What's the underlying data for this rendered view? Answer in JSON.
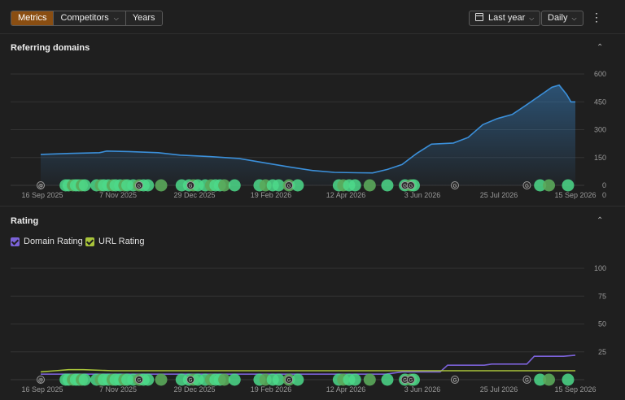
{
  "toolbar": {
    "tabs": [
      {
        "label": "Metrics",
        "active": true
      },
      {
        "label": "Competitors",
        "active": false,
        "dropdown": true
      },
      {
        "label": "Years",
        "active": false
      }
    ],
    "period_label": "Last year",
    "granularity_label": "Daily",
    "more_icon": "kebab-icon",
    "accent_color": "#8a4e12"
  },
  "sections": {
    "referring_domains": {
      "title": "Referring domains"
    },
    "rating": {
      "title": "Rating"
    }
  },
  "rating_legend": [
    {
      "label": "Domain Rating",
      "color": "#7b62d8",
      "checked": true
    },
    {
      "label": "URL Rating",
      "color": "#a8c43a",
      "checked": true
    }
  ],
  "chart_data": [
    {
      "type": "area",
      "title": "Referring domains",
      "x_tick_labels": [
        "16 Sep 2025",
        "7 Nov 2025",
        "29 Dec 2025",
        "19 Feb 2026",
        "12 Apr 2026",
        "3 Jun 2026",
        "25 Jul 2026",
        "15 Sep 2026"
      ],
      "y_tick_labels": [
        "0",
        "150",
        "300",
        "450",
        "600"
      ],
      "ylim": [
        0,
        600
      ],
      "xlim": [
        "2025-09-16",
        "2026-09-15"
      ],
      "grid": true,
      "series": [
        {
          "color": "#3b8fd9",
          "points": [
            [
              "2025-09-16",
              167
            ],
            [
              "2025-10-06",
              172
            ],
            [
              "2025-10-26",
              176
            ],
            [
              "2025-10-31",
              185
            ],
            [
              "2025-11-15",
              182
            ],
            [
              "2025-12-05",
              176
            ],
            [
              "2025-12-20",
              163
            ],
            [
              "2026-01-09",
              155
            ],
            [
              "2026-01-29",
              145
            ],
            [
              "2026-02-18",
              118
            ],
            [
              "2026-03-05",
              98
            ],
            [
              "2026-03-20",
              80
            ],
            [
              "2026-04-04",
              70
            ],
            [
              "2026-04-20",
              68
            ],
            [
              "2026-04-30",
              67
            ],
            [
              "2026-05-10",
              86
            ],
            [
              "2026-05-20",
              112
            ],
            [
              "2026-05-30",
              172
            ],
            [
              "2026-06-09",
              222
            ],
            [
              "2026-06-24",
              228
            ],
            [
              "2026-07-04",
              258
            ],
            [
              "2026-07-14",
              327
            ],
            [
              "2026-07-24",
              360
            ],
            [
              "2026-08-03",
              382
            ],
            [
              "2026-08-13",
              435
            ],
            [
              "2026-08-23",
              490
            ],
            [
              "2026-08-30",
              528
            ],
            [
              "2026-09-04",
              540
            ],
            [
              "2026-09-09",
              490
            ],
            [
              "2026-09-12",
              450
            ],
            [
              "2026-09-15",
              450
            ]
          ]
        }
      ],
      "annotation_markers": [
        {
          "date": "2025-09-16",
          "label": "@"
        },
        {
          "date": "2025-11-22",
          "label": "G"
        },
        {
          "date": "2025-12-27",
          "label": "G"
        },
        {
          "date": "2026-03-04",
          "label": "G"
        },
        {
          "date": "2026-05-22",
          "label": "G"
        },
        {
          "date": "2026-05-26",
          "label": "G"
        },
        {
          "date": "2026-06-25",
          "label": "G"
        },
        {
          "date": "2026-08-13",
          "label": "G"
        }
      ]
    },
    {
      "type": "line",
      "title": "Rating",
      "x_tick_labels": [
        "16 Sep 2025",
        "7 Nov 2025",
        "29 Dec 2025",
        "19 Feb 2026",
        "12 Apr 2026",
        "3 Jun 2026",
        "25 Jul 2026",
        "15 Sep 2026"
      ],
      "y_tick_labels": [
        "25",
        "50",
        "75",
        "100"
      ],
      "ylim": [
        0,
        100
      ],
      "xlim": [
        "2025-09-16",
        "2026-09-15"
      ],
      "grid": true,
      "series": [
        {
          "name": "Domain Rating",
          "color": "#7b62d8",
          "points": [
            [
              "2025-09-16",
              5
            ],
            [
              "2026-05-09",
              5
            ],
            [
              "2026-05-20",
              7
            ],
            [
              "2026-06-15",
              7
            ],
            [
              "2026-06-20",
              13
            ],
            [
              "2026-07-15",
              13
            ],
            [
              "2026-07-20",
              14
            ],
            [
              "2026-08-13",
              14
            ],
            [
              "2026-08-18",
              21
            ],
            [
              "2026-09-07",
              21
            ],
            [
              "2026-09-15",
              22
            ]
          ]
        },
        {
          "name": "URL Rating",
          "color": "#a8c43a",
          "points": [
            [
              "2025-09-16",
              7
            ],
            [
              "2025-09-26",
              8
            ],
            [
              "2025-10-05",
              9
            ],
            [
              "2025-10-15",
              9
            ],
            [
              "2025-11-04",
              8
            ],
            [
              "2026-09-15",
              8
            ]
          ]
        }
      ],
      "annotation_markers": [
        {
          "date": "2025-09-16",
          "label": "@"
        },
        {
          "date": "2025-11-22",
          "label": "G"
        },
        {
          "date": "2025-12-27",
          "label": "G"
        },
        {
          "date": "2026-03-04",
          "label": "G"
        },
        {
          "date": "2026-05-22",
          "label": "G"
        },
        {
          "date": "2026-05-26",
          "label": "G"
        },
        {
          "date": "2026-06-25",
          "label": "G"
        },
        {
          "date": "2026-08-13",
          "label": "G"
        }
      ]
    }
  ],
  "event_dots": [
    "2025-10-03",
    "2025-10-05",
    "2025-10-08",
    "2025-10-10",
    "2025-10-12",
    "2025-10-14",
    "2025-10-16",
    "2025-10-24",
    "2025-10-27",
    "2025-10-29",
    "2025-11-01",
    "2025-11-04",
    "2025-11-06",
    "2025-11-09",
    "2025-11-12",
    "2025-11-14",
    "2025-11-18",
    "2025-11-22",
    "2025-11-25",
    "2025-11-28",
    "2025-12-07",
    "2025-12-21",
    "2025-12-26",
    "2025-12-29",
    "2026-01-01",
    "2026-01-06",
    "2026-01-10",
    "2026-01-13",
    "2026-01-16",
    "2026-01-19",
    "2026-01-26",
    "2026-02-12",
    "2026-02-16",
    "2026-02-21",
    "2026-02-25",
    "2026-03-04",
    "2026-03-10",
    "2026-04-07",
    "2026-04-10",
    "2026-04-14",
    "2026-04-18",
    "2026-04-28",
    "2026-05-10",
    "2026-05-22",
    "2026-05-26",
    "2026-05-28",
    "2026-08-22",
    "2026-08-28",
    "2026-09-10"
  ]
}
